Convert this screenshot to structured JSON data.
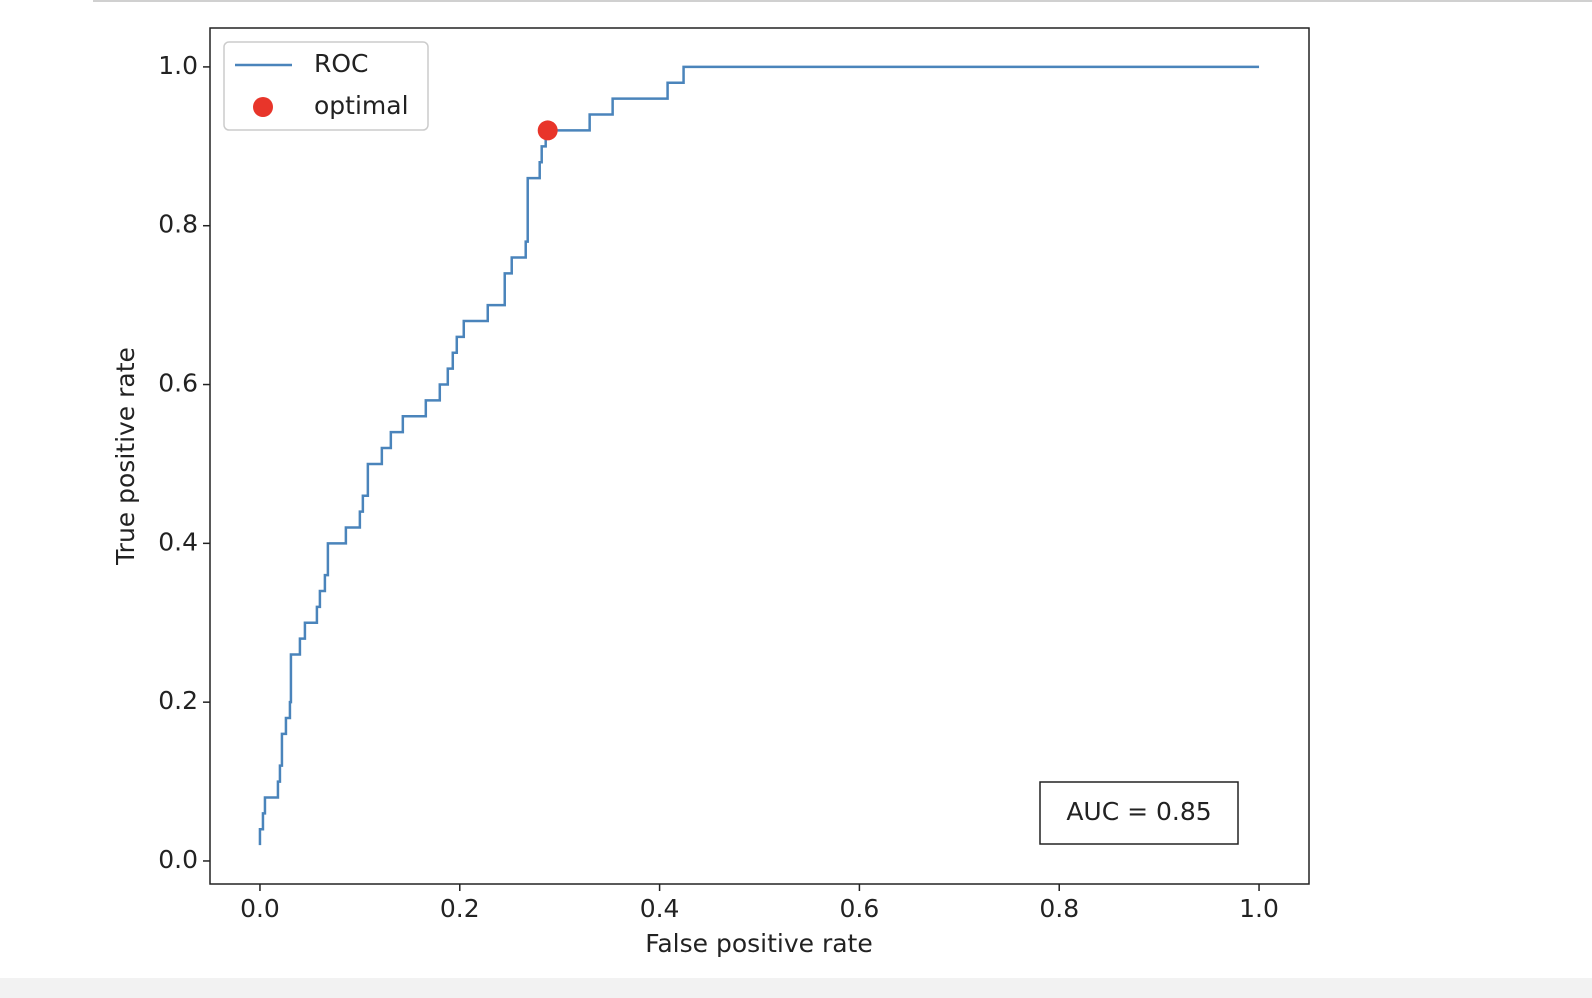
{
  "chart_data": {
    "type": "line",
    "xlabel": "False positive rate",
    "ylabel": "True positive rate",
    "xlim": [
      -0.05,
      1.05
    ],
    "ylim": [
      -0.029,
      1.049
    ],
    "xticks": [
      {
        "value": 0,
        "label": "0.0"
      },
      0.2,
      0.4,
      0.6,
      0.8,
      {
        "value": 1,
        "label": "1.0"
      }
    ],
    "yticks": [
      {
        "value": 0,
        "label": "0.0"
      },
      0.2,
      0.4,
      0.6,
      0.8,
      {
        "value": 1,
        "label": "1.0"
      }
    ],
    "grid": false,
    "legend": "upper left",
    "annotation": {
      "text": "AUC = 0.85",
      "corner": "lower right"
    },
    "series": [
      {
        "name": "ROC",
        "type": "line",
        "color": "#4a84bb",
        "x": [
          0,
          0,
          0.003,
          0.003,
          0.005,
          0.005,
          0.018,
          0.018,
          0.02,
          0.02,
          0.022,
          0.022,
          0.026,
          0.026,
          0.03,
          0.03,
          0.031,
          0.031,
          0.04,
          0.04,
          0.045,
          0.045,
          0.057,
          0.057,
          0.06,
          0.06,
          0.065,
          0.065,
          0.068,
          0.068,
          0.086,
          0.086,
          0.1,
          0.1,
          0.103,
          0.103,
          0.108,
          0.108,
          0.122,
          0.122,
          0.131,
          0.131,
          0.143,
          0.143,
          0.166,
          0.166,
          0.18,
          0.18,
          0.188,
          0.188,
          0.193,
          0.193,
          0.197,
          0.197,
          0.204,
          0.204,
          0.228,
          0.228,
          0.245,
          0.245,
          0.252,
          0.252,
          0.266,
          0.266,
          0.268,
          0.268,
          0.28,
          0.28,
          0.282,
          0.282,
          0.286,
          0.286,
          0.33,
          0.33,
          0.353,
          0.353,
          0.408,
          0.408,
          0.424,
          0.424,
          1
        ],
        "values": [
          0.02,
          0.04,
          0.04,
          0.06,
          0.06,
          0.08,
          0.08,
          0.1,
          0.1,
          0.12,
          0.12,
          0.16,
          0.16,
          0.18,
          0.18,
          0.2,
          0.2,
          0.26,
          0.26,
          0.28,
          0.28,
          0.3,
          0.3,
          0.32,
          0.32,
          0.34,
          0.34,
          0.36,
          0.36,
          0.4,
          0.4,
          0.42,
          0.42,
          0.44,
          0.44,
          0.46,
          0.46,
          0.5,
          0.5,
          0.52,
          0.52,
          0.54,
          0.54,
          0.56,
          0.56,
          0.58,
          0.58,
          0.6,
          0.6,
          0.62,
          0.62,
          0.64,
          0.64,
          0.66,
          0.66,
          0.68,
          0.68,
          0.7,
          0.7,
          0.74,
          0.74,
          0.76,
          0.76,
          0.78,
          0.78,
          0.86,
          0.86,
          0.88,
          0.88,
          0.9,
          0.9,
          0.92,
          0.92,
          0.94,
          0.94,
          0.96,
          0.96,
          0.98,
          0.98,
          1,
          1
        ]
      },
      {
        "name": "optimal",
        "type": "scatter",
        "color": "#e8352a",
        "x": [
          0.288
        ],
        "values": [
          0.92
        ]
      }
    ]
  }
}
